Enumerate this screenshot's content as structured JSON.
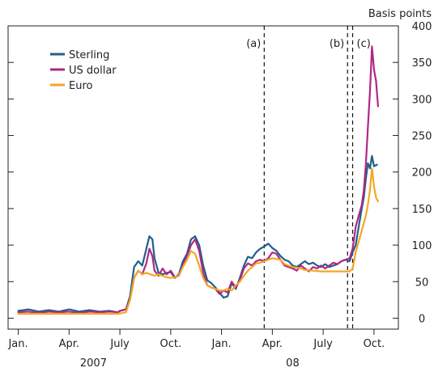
{
  "chart_data": {
    "type": "line",
    "right_axis_title": "Basis points",
    "y_ticks": [
      0,
      50,
      100,
      150,
      200,
      250,
      300,
      350,
      400
    ],
    "ylim": [
      -15,
      400
    ],
    "xlim": [
      2006.95,
      2008.87
    ],
    "grid": false,
    "legend_position": "top-left",
    "month_ticks": [
      {
        "label": "Jan.",
        "x": 2007.0
      },
      {
        "label": "Apr.",
        "x": 2007.25
      },
      {
        "label": "July",
        "x": 2007.5
      },
      {
        "label": "Oct.",
        "x": 2007.75
      },
      {
        "label": "Jan.",
        "x": 2008.0
      },
      {
        "label": "Apr.",
        "x": 2008.25
      },
      {
        "label": "July",
        "x": 2008.5
      },
      {
        "label": "Oct.",
        "x": 2008.75
      }
    ],
    "year_labels": [
      {
        "label": "2007",
        "x": 2007.37
      },
      {
        "label": "08",
        "x": 2008.35
      }
    ],
    "events": [
      {
        "label": "(a)",
        "x": 2008.21
      },
      {
        "label": "(b)",
        "x": 2008.62
      },
      {
        "label": "(c)",
        "x": 2008.645
      }
    ],
    "series": [
      {
        "name": "Sterling",
        "color": "#1f5f8b",
        "points": [
          [
            2007.0,
            10
          ],
          [
            2007.05,
            12
          ],
          [
            2007.1,
            9
          ],
          [
            2007.15,
            11
          ],
          [
            2007.2,
            9
          ],
          [
            2007.25,
            12
          ],
          [
            2007.3,
            9
          ],
          [
            2007.35,
            11
          ],
          [
            2007.4,
            9
          ],
          [
            2007.45,
            10
          ],
          [
            2007.49,
            8
          ],
          [
            2007.5,
            10
          ],
          [
            2007.53,
            12
          ],
          [
            2007.55,
            30
          ],
          [
            2007.57,
            70
          ],
          [
            2007.59,
            78
          ],
          [
            2007.61,
            72
          ],
          [
            2007.63,
            95
          ],
          [
            2007.645,
            112
          ],
          [
            2007.66,
            108
          ],
          [
            2007.67,
            82
          ],
          [
            2007.69,
            62
          ],
          [
            2007.71,
            60
          ],
          [
            2007.73,
            62
          ],
          [
            2007.75,
            63
          ],
          [
            2007.77,
            55
          ],
          [
            2007.79,
            60
          ],
          [
            2007.81,
            78
          ],
          [
            2007.83,
            88
          ],
          [
            2007.85,
            108
          ],
          [
            2007.87,
            112
          ],
          [
            2007.89,
            100
          ],
          [
            2007.91,
            72
          ],
          [
            2007.93,
            52
          ],
          [
            2007.95,
            48
          ],
          [
            2007.97,
            42
          ],
          [
            2007.99,
            35
          ],
          [
            2008.01,
            28
          ],
          [
            2008.03,
            30
          ],
          [
            2008.05,
            48
          ],
          [
            2008.07,
            40
          ],
          [
            2008.09,
            55
          ],
          [
            2008.11,
            72
          ],
          [
            2008.13,
            84
          ],
          [
            2008.15,
            82
          ],
          [
            2008.17,
            90
          ],
          [
            2008.19,
            95
          ],
          [
            2008.21,
            98
          ],
          [
            2008.23,
            102
          ],
          [
            2008.25,
            96
          ],
          [
            2008.27,
            92
          ],
          [
            2008.29,
            85
          ],
          [
            2008.31,
            80
          ],
          [
            2008.33,
            78
          ],
          [
            2008.35,
            72
          ],
          [
            2008.37,
            70
          ],
          [
            2008.39,
            74
          ],
          [
            2008.41,
            78
          ],
          [
            2008.43,
            74
          ],
          [
            2008.45,
            76
          ],
          [
            2008.47,
            72
          ],
          [
            2008.49,
            70
          ],
          [
            2008.51,
            74
          ],
          [
            2008.53,
            70
          ],
          [
            2008.55,
            72
          ],
          [
            2008.57,
            74
          ],
          [
            2008.59,
            78
          ],
          [
            2008.61,
            80
          ],
          [
            2008.63,
            78
          ],
          [
            2008.645,
            90
          ],
          [
            2008.66,
            100
          ],
          [
            2008.675,
            125
          ],
          [
            2008.69,
            150
          ],
          [
            2008.7,
            165
          ],
          [
            2008.71,
            190
          ],
          [
            2008.72,
            212
          ],
          [
            2008.73,
            205
          ],
          [
            2008.74,
            222
          ],
          [
            2008.75,
            208
          ],
          [
            2008.765,
            210
          ]
        ]
      },
      {
        "name": "US dollar",
        "color": "#b02785",
        "points": [
          [
            2007.0,
            8
          ],
          [
            2007.05,
            9
          ],
          [
            2007.1,
            7
          ],
          [
            2007.15,
            9
          ],
          [
            2007.2,
            8
          ],
          [
            2007.25,
            9
          ],
          [
            2007.3,
            7
          ],
          [
            2007.35,
            9
          ],
          [
            2007.4,
            8
          ],
          [
            2007.45,
            9
          ],
          [
            2007.49,
            8
          ],
          [
            2007.5,
            10
          ],
          [
            2007.53,
            12
          ],
          [
            2007.55,
            25
          ],
          [
            2007.57,
            55
          ],
          [
            2007.59,
            65
          ],
          [
            2007.61,
            60
          ],
          [
            2007.63,
            75
          ],
          [
            2007.645,
            95
          ],
          [
            2007.66,
            85
          ],
          [
            2007.67,
            65
          ],
          [
            2007.69,
            58
          ],
          [
            2007.71,
            68
          ],
          [
            2007.73,
            60
          ],
          [
            2007.75,
            65
          ],
          [
            2007.77,
            56
          ],
          [
            2007.79,
            58
          ],
          [
            2007.81,
            72
          ],
          [
            2007.83,
            85
          ],
          [
            2007.85,
            100
          ],
          [
            2007.87,
            108
          ],
          [
            2007.89,
            92
          ],
          [
            2007.91,
            62
          ],
          [
            2007.93,
            45
          ],
          [
            2007.95,
            42
          ],
          [
            2007.97,
            40
          ],
          [
            2007.99,
            33
          ],
          [
            2008.01,
            38
          ],
          [
            2008.03,
            35
          ],
          [
            2008.05,
            50
          ],
          [
            2008.07,
            42
          ],
          [
            2008.09,
            52
          ],
          [
            2008.11,
            68
          ],
          [
            2008.13,
            75
          ],
          [
            2008.15,
            72
          ],
          [
            2008.17,
            78
          ],
          [
            2008.19,
            80
          ],
          [
            2008.21,
            78
          ],
          [
            2008.23,
            82
          ],
          [
            2008.25,
            90
          ],
          [
            2008.27,
            88
          ],
          [
            2008.29,
            80
          ],
          [
            2008.31,
            72
          ],
          [
            2008.33,
            70
          ],
          [
            2008.35,
            68
          ],
          [
            2008.37,
            65
          ],
          [
            2008.39,
            72
          ],
          [
            2008.41,
            68
          ],
          [
            2008.43,
            64
          ],
          [
            2008.45,
            70
          ],
          [
            2008.47,
            68
          ],
          [
            2008.49,
            72
          ],
          [
            2008.51,
            68
          ],
          [
            2008.53,
            72
          ],
          [
            2008.55,
            76
          ],
          [
            2008.57,
            74
          ],
          [
            2008.59,
            78
          ],
          [
            2008.61,
            80
          ],
          [
            2008.63,
            82
          ],
          [
            2008.645,
            95
          ],
          [
            2008.66,
            125
          ],
          [
            2008.675,
            140
          ],
          [
            2008.69,
            155
          ],
          [
            2008.7,
            175
          ],
          [
            2008.71,
            210
          ],
          [
            2008.72,
            260
          ],
          [
            2008.73,
            310
          ],
          [
            2008.74,
            372
          ],
          [
            2008.75,
            340
          ],
          [
            2008.76,
            325
          ],
          [
            2008.77,
            290
          ]
        ]
      },
      {
        "name": "Euro",
        "color": "#f5a623",
        "points": [
          [
            2007.0,
            6
          ],
          [
            2007.1,
            6
          ],
          [
            2007.2,
            6
          ],
          [
            2007.3,
            6
          ],
          [
            2007.4,
            6
          ],
          [
            2007.49,
            6
          ],
          [
            2007.53,
            8
          ],
          [
            2007.55,
            25
          ],
          [
            2007.57,
            55
          ],
          [
            2007.59,
            65
          ],
          [
            2007.61,
            60
          ],
          [
            2007.63,
            62
          ],
          [
            2007.65,
            60
          ],
          [
            2007.67,
            58
          ],
          [
            2007.69,
            60
          ],
          [
            2007.71,
            58
          ],
          [
            2007.73,
            56
          ],
          [
            2007.75,
            55
          ],
          [
            2007.77,
            56
          ],
          [
            2007.79,
            58
          ],
          [
            2007.81,
            70
          ],
          [
            2007.83,
            80
          ],
          [
            2007.85,
            92
          ],
          [
            2007.87,
            88
          ],
          [
            2007.89,
            72
          ],
          [
            2007.91,
            55
          ],
          [
            2007.93,
            45
          ],
          [
            2007.95,
            42
          ],
          [
            2007.97,
            40
          ],
          [
            2007.99,
            38
          ],
          [
            2008.01,
            38
          ],
          [
            2008.03,
            40
          ],
          [
            2008.05,
            38
          ],
          [
            2008.07,
            45
          ],
          [
            2008.09,
            50
          ],
          [
            2008.11,
            58
          ],
          [
            2008.13,
            65
          ],
          [
            2008.15,
            70
          ],
          [
            2008.17,
            75
          ],
          [
            2008.19,
            76
          ],
          [
            2008.21,
            78
          ],
          [
            2008.25,
            82
          ],
          [
            2008.29,
            80
          ],
          [
            2008.31,
            74
          ],
          [
            2008.35,
            70
          ],
          [
            2008.39,
            68
          ],
          [
            2008.41,
            66
          ],
          [
            2008.45,
            65
          ],
          [
            2008.49,
            64
          ],
          [
            2008.55,
            64
          ],
          [
            2008.6,
            64
          ],
          [
            2008.63,
            64
          ],
          [
            2008.645,
            68
          ],
          [
            2008.66,
            90
          ],
          [
            2008.675,
            105
          ],
          [
            2008.69,
            120
          ],
          [
            2008.7,
            130
          ],
          [
            2008.71,
            140
          ],
          [
            2008.72,
            155
          ],
          [
            2008.73,
            175
          ],
          [
            2008.74,
            205
          ],
          [
            2008.75,
            180
          ],
          [
            2008.76,
            165
          ],
          [
            2008.77,
            160
          ]
        ]
      }
    ]
  }
}
